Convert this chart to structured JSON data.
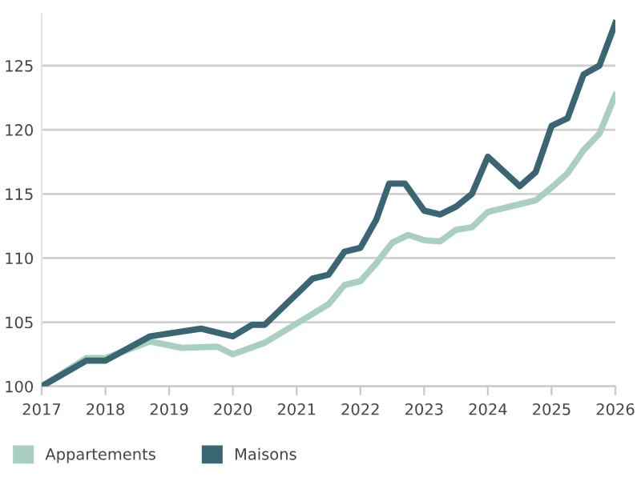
{
  "chart_data": {
    "type": "line",
    "x": [
      2017,
      2017.7,
      2018,
      2018.7,
      2019.5,
      2020,
      2020.3,
      2020.5,
      2021.25,
      2021.5,
      2021.75,
      2022,
      2022.25,
      2022.45,
      2022.7,
      2023,
      2023.25,
      2023.5,
      2023.75,
      2024,
      2024.5,
      2024.75,
      2025,
      2025.25,
      2025.5,
      2025.75,
      2026
    ],
    "series": [
      {
        "name": "Appartements",
        "color": "#a9cfc1",
        "x": [
          2017,
          2017.7,
          2018,
          2018.7,
          2019.2,
          2019.75,
          2020,
          2020.5,
          2021,
          2021.5,
          2021.75,
          2022,
          2022.25,
          2022.5,
          2022.75,
          2023,
          2023.25,
          2023.5,
          2023.75,
          2024,
          2024.5,
          2024.75,
          2025,
          2025.25,
          2025.5,
          2025.75,
          2026
        ],
        "values": [
          100,
          102.2,
          102.2,
          103.5,
          103,
          103.1,
          102.5,
          103.4,
          104.9,
          106.4,
          107.9,
          108.2,
          109.6,
          111.2,
          111.8,
          111.4,
          111.3,
          112.2,
          112.4,
          113.6,
          114.2,
          114.5,
          115.5,
          116.6,
          118.4,
          119.7,
          122.7
        ]
      },
      {
        "name": "Maisons",
        "color": "#3a6674",
        "values": [
          100,
          102,
          102,
          103.9,
          104.5,
          103.9,
          104.8,
          104.8,
          108.4,
          108.7,
          110.5,
          110.8,
          113,
          115.8,
          115.8,
          113.7,
          113.4,
          114,
          115,
          117.9,
          115.6,
          116.7,
          120.3,
          120.9,
          124.3,
          125,
          128.3
        ]
      }
    ],
    "xlim": [
      2017,
      2026
    ],
    "xticks": [
      2017,
      2018,
      2019,
      2020,
      2021,
      2022,
      2023,
      2024,
      2025,
      2026
    ],
    "ylim": [
      100,
      129
    ],
    "yticks": [
      100,
      105,
      110,
      115,
      120,
      125
    ],
    "grid": "y",
    "legend": "bottom left",
    "marker": "none",
    "line_style": "solid"
  }
}
